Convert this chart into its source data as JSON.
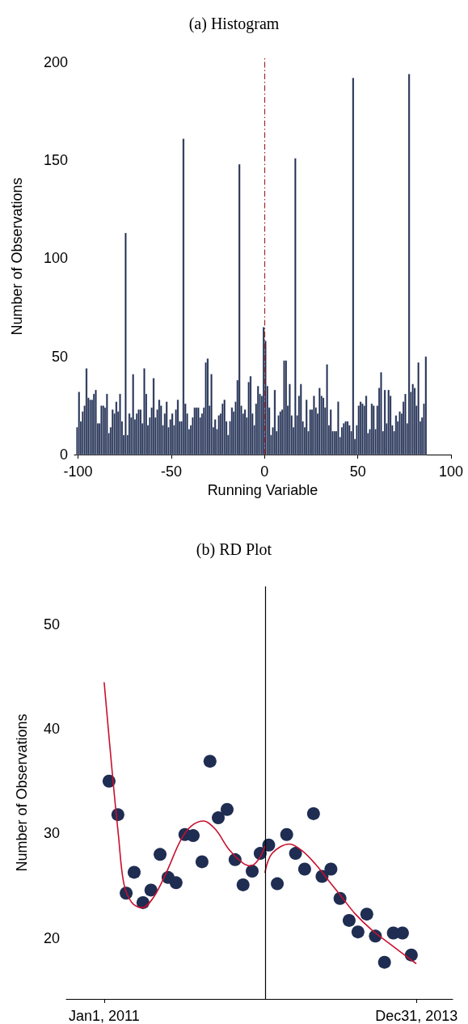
{
  "chart_data": [
    {
      "type": "histogram",
      "title": "(a) Histogram",
      "xlabel": "Running Variable",
      "ylabel": "Number of Observations",
      "color": "#1f2d52",
      "bins": [
        -101,
        -100,
        -99,
        -98,
        -97,
        -96,
        -95,
        -94,
        -93,
        -92,
        -91,
        -90,
        -89,
        -88,
        -87,
        -86,
        -85,
        -84,
        -83,
        -82,
        -81,
        -80,
        -79,
        -78,
        -77,
        -76,
        -75,
        -74,
        -73,
        -72,
        -71,
        -70,
        -69,
        -68,
        -67,
        -66,
        -65,
        -64,
        -63,
        -62,
        -61,
        -60,
        -59,
        -58,
        -57,
        -56,
        -55,
        -54,
        -53,
        -52,
        -51,
        -50,
        -49,
        -48,
        -47,
        -46,
        -45,
        -44,
        -43,
        -42,
        -41,
        -40,
        -39,
        -38,
        -37,
        -36,
        -35,
        -34,
        -33,
        -32,
        -31,
        -30,
        -29,
        -28,
        -27,
        -26,
        -25,
        -24,
        -23,
        -22,
        -21,
        -20,
        -19,
        -18,
        -17,
        -16,
        -15,
        -14,
        -13,
        -12,
        -11,
        -10,
        -9,
        -8,
        -7,
        -6,
        -5,
        -4,
        -3,
        -2,
        -1,
        0,
        1,
        2,
        3,
        4,
        5,
        6,
        7,
        8,
        9,
        10,
        11,
        12,
        13,
        14,
        15,
        16,
        17,
        18,
        19,
        20,
        21,
        22,
        23,
        24,
        25,
        26,
        27,
        28,
        29,
        30,
        31,
        32,
        33,
        34,
        35,
        36,
        37,
        38,
        39,
        40,
        41,
        42,
        43,
        44,
        45,
        46,
        47,
        48,
        49,
        50,
        51,
        52,
        53,
        54,
        55,
        56,
        57,
        58,
        59,
        60,
        61,
        62,
        63,
        64,
        65,
        66,
        67,
        68,
        69,
        70,
        71,
        72,
        73,
        74,
        75,
        76,
        77,
        78,
        79,
        80,
        81,
        82,
        83,
        84,
        85,
        86,
        87
      ],
      "values": [
        14,
        32,
        17,
        22,
        25,
        44,
        29,
        28,
        28,
        31,
        33,
        16,
        16,
        25,
        25,
        24,
        31,
        11,
        14,
        23,
        21,
        27,
        22,
        31,
        17,
        10,
        113,
        10,
        21,
        19,
        41,
        18,
        21,
        23,
        23,
        16,
        44,
        31,
        15,
        19,
        24,
        39,
        19,
        23,
        28,
        25,
        15,
        21,
        27,
        14,
        18,
        21,
        15,
        23,
        28,
        17,
        17,
        161,
        26,
        21,
        13,
        15,
        19,
        24,
        24,
        24,
        19,
        21,
        24,
        47,
        49,
        25,
        41,
        14,
        18,
        13,
        20,
        21,
        26,
        28,
        17,
        10,
        17,
        24,
        22,
        27,
        38,
        148,
        25,
        21,
        23,
        19,
        37,
        40,
        21,
        15,
        26,
        35,
        31,
        30,
        65,
        58,
        35,
        24,
        10,
        14,
        33,
        12,
        20,
        22,
        23,
        48,
        48,
        25,
        36,
        20,
        14,
        151,
        20,
        30,
        36,
        17,
        14,
        28,
        12,
        23,
        23,
        30,
        24,
        21,
        34,
        30,
        29,
        24,
        46,
        15,
        23,
        12,
        12,
        12,
        27,
        9,
        14,
        16,
        17,
        17,
        15,
        12,
        192,
        8,
        15,
        25,
        27,
        26,
        25,
        30,
        11,
        13,
        26,
        25,
        13,
        25,
        34,
        42,
        12,
        33,
        16,
        33,
        30,
        15,
        12,
        20,
        17,
        22,
        21,
        27,
        31,
        16,
        194,
        32,
        36,
        34,
        25,
        47,
        17,
        19,
        26,
        50
      ],
      "xlim": [
        -102,
        100
      ],
      "xticks": [
        -100,
        -50,
        0,
        50,
        100
      ],
      "ylim": [
        0,
        202
      ],
      "yticks": [
        0,
        50,
        100,
        150,
        200
      ],
      "ref_lines": [
        {
          "axis": "x",
          "value": 0,
          "color": "#a3262a",
          "line_style": "dashed"
        }
      ]
    },
    {
      "type": "scatter",
      "title": "(b) RD Plot",
      "ylabel": "Number of Observations",
      "xlim": [
        "2010-08-21",
        "2014-05-07"
      ],
      "xticks": [
        {
          "value": "2011-01-01",
          "label": "Jan1, 2011"
        },
        {
          "value": "2013-12-31",
          "label": "Dec31, 2013"
        }
      ],
      "ylim": [
        14.2,
        53.6
      ],
      "yticks": [
        20,
        30,
        40,
        50
      ],
      "ref_lines": [
        {
          "axis": "x",
          "value": "2012-07-18",
          "color": "#000000",
          "line_style": "solid"
        }
      ],
      "series": [
        {
          "type": "scatter",
          "color": "#1f2d52",
          "marker": "circle",
          "x": [
            "2011-01-18",
            "2011-02-18",
            "2011-03-19",
            "2011-04-16",
            "2011-05-17",
            "2011-06-14",
            "2011-07-16",
            "2011-08-13",
            "2011-09-10",
            "2011-10-11",
            "2011-11-09",
            "2011-12-10",
            "2012-01-07",
            "2012-02-05",
            "2012-03-07",
            "2012-04-04",
            "2012-05-02",
            "2012-06-03",
            "2012-07-01",
            "2012-07-31",
            "2012-08-30",
            "2012-10-02",
            "2012-11-02",
            "2012-12-04",
            "2013-01-04",
            "2013-02-03",
            "2013-03-06",
            "2013-04-07",
            "2013-05-09",
            "2013-06-09",
            "2013-07-10",
            "2013-08-09",
            "2013-09-10",
            "2013-10-11",
            "2013-11-12",
            "2013-12-13"
          ],
          "values": [
            35.0,
            31.8,
            24.3,
            26.3,
            23.4,
            24.6,
            28.0,
            25.8,
            25.3,
            29.9,
            29.8,
            27.3,
            36.9,
            31.5,
            32.3,
            27.5,
            25.1,
            26.4,
            28.1,
            28.9,
            25.2,
            29.9,
            28.1,
            26.6,
            31.9,
            25.9,
            26.6,
            23.8,
            21.7,
            20.6,
            22.3,
            20.2,
            17.7,
            20.5,
            20.5,
            18.4
          ]
        },
        {
          "type": "line",
          "color": "#c8102e",
          "marker": "none",
          "x": [
            "2011-01-01",
            "2011-02-01",
            "2011-02-20",
            "2011-03-11",
            "2011-04-08",
            "2011-05-14",
            "2011-06-23",
            "2011-08-09",
            "2011-09-25",
            "2011-11-02",
            "2011-12-15",
            "2012-01-26",
            "2012-03-13",
            "2012-04-30",
            "2012-05-28",
            "2012-06-25",
            "2012-07-18"
          ],
          "values": [
            44.4,
            35.0,
            29.8,
            25.2,
            23.4,
            22.9,
            23.9,
            26.4,
            29.3,
            30.7,
            31.2,
            30.4,
            28.5,
            27.2,
            26.9,
            27.5,
            28.8
          ]
        },
        {
          "type": "line",
          "color": "#c8102e",
          "marker": "none",
          "x": [
            "2012-07-18",
            "2012-08-12",
            "2012-10-12",
            "2012-11-23",
            "2013-01-10",
            "2013-02-26",
            "2013-04-14",
            "2013-05-31",
            "2013-07-27",
            "2013-09-22",
            "2013-12-29"
          ],
          "values": [
            26.3,
            28.1,
            29.0,
            28.4,
            27.1,
            25.5,
            23.9,
            22.3,
            20.8,
            19.6,
            17.6
          ]
        }
      ]
    }
  ]
}
